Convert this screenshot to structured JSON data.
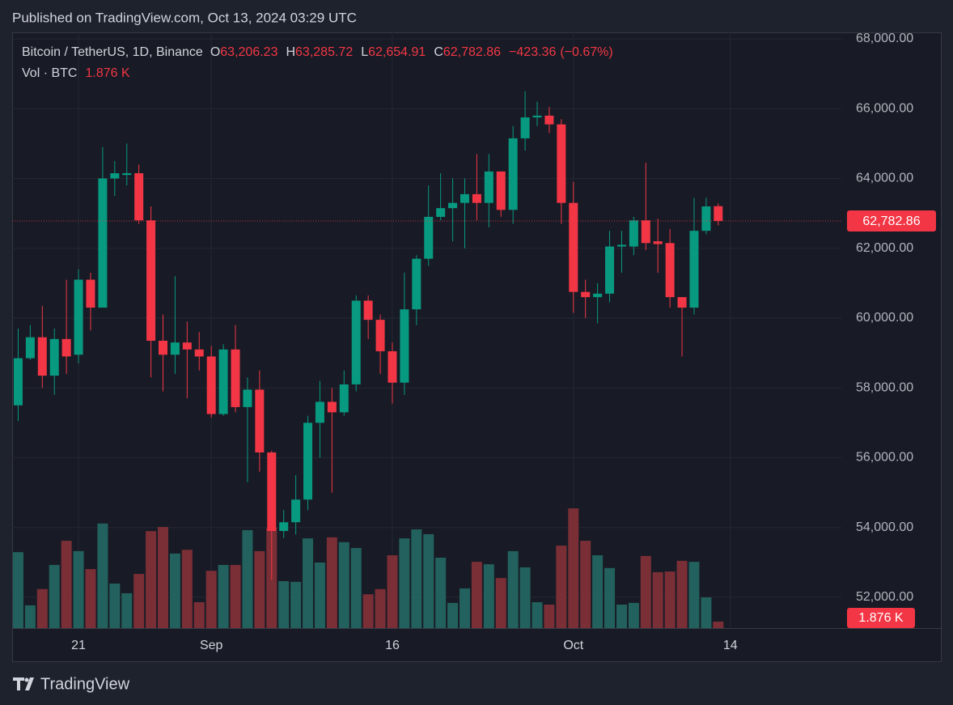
{
  "published": "Published on TradingView.com, Oct 13, 2024 03:29 UTC",
  "brand": "TradingView",
  "chart_data": {
    "type": "candlestick",
    "symbol": "Bitcoin / TetherUS, 1D, Binance",
    "legend": [
      {
        "key": "O",
        "value": 63206.23,
        "label": "63,206.23"
      },
      {
        "key": "H",
        "value": 63285.72,
        "label": "63,285.72"
      },
      {
        "key": "L",
        "value": 62654.91,
        "label": "62,654.91"
      },
      {
        "key": "C",
        "value": 62782.86,
        "label": "62,782.86"
      }
    ],
    "change": {
      "value": -423.36,
      "label": "−423.36"
    },
    "change_pct": {
      "value": -0.67,
      "label": "(−0.67%)"
    },
    "volume_title": "Vol · BTC",
    "volume_last": {
      "value": 1.876,
      "label": "1.876 K"
    },
    "last_price": {
      "value": 62782.86,
      "label": "62,782.86"
    },
    "up_color": "#089981",
    "down_color": "#f23645",
    "volume_up_color": "#22615d",
    "volume_down_color": "#7a2e36",
    "open": [
      57500,
      58850,
      59450,
      58350,
      59400,
      58950,
      61100,
      60300,
      64000,
      64100,
      64150,
      62800,
      59350,
      58950,
      59300,
      59100,
      58900,
      57250,
      59100,
      57450,
      57950,
      56150,
      53900,
      54150,
      54800,
      57000,
      57600,
      57300,
      58100,
      60500,
      59950,
      59050,
      58150,
      60250,
      61700,
      62900,
      63150,
      63300,
      63550,
      63300,
      64200,
      63100,
      65150,
      65750,
      65800,
      65550,
      63300,
      60750,
      60600,
      60700,
      62050,
      62050,
      62800,
      62200,
      62150,
      60600,
      60300,
      62500,
      63206.23
    ],
    "high": [
      59700,
      59800,
      60350,
      59700,
      61100,
      61400,
      61300,
      64900,
      64500,
      65000,
      64400,
      63200,
      60100,
      61200,
      59900,
      59600,
      59200,
      59250,
      59800,
      58300,
      58500,
      56200,
      54500,
      55500,
      57200,
      58200,
      58000,
      58500,
      60650,
      60650,
      60100,
      59300,
      61300,
      61800,
      63800,
      64150,
      64000,
      64000,
      64700,
      64700,
      64200,
      65500,
      66500,
      66200,
      66050,
      65700,
      63900,
      61100,
      61000,
      62500,
      62500,
      62900,
      64450,
      62850,
      62550,
      60600,
      63450,
      63450,
      63285.72
    ],
    "low": [
      57050,
      58800,
      58000,
      57800,
      58400,
      58700,
      59650,
      60300,
      63500,
      63800,
      62700,
      58300,
      57900,
      58400,
      57700,
      58500,
      57150,
      57200,
      57300,
      55300,
      55600,
      52500,
      53700,
      53800,
      54500,
      56000,
      55000,
      57200,
      57900,
      59400,
      58400,
      57550,
      57800,
      59800,
      61500,
      62800,
      62200,
      62000,
      62800,
      62600,
      62900,
      62700,
      64800,
      65500,
      65300,
      62700,
      60150,
      60000,
      59850,
      60450,
      61300,
      61800,
      61950,
      61300,
      60300,
      58900,
      60100,
      62400,
      62654.91
    ],
    "close": [
      58850,
      59450,
      58350,
      59400,
      58900,
      61100,
      60300,
      64000,
      64150,
      64150,
      62800,
      59350,
      58950,
      59300,
      59100,
      58900,
      57250,
      59100,
      57450,
      57950,
      56150,
      53900,
      54150,
      54800,
      57000,
      57600,
      57300,
      58100,
      60500,
      59950,
      59050,
      58150,
      60250,
      61700,
      62900,
      63150,
      63300,
      63550,
      63300,
      64200,
      63100,
      65150,
      65750,
      65800,
      65550,
      63300,
      60750,
      60600,
      60700,
      62050,
      62100,
      62800,
      62150,
      62120,
      60600,
      60300,
      62500,
      63200,
      62782.86
    ],
    "volume": [
      22.0,
      6.6,
      11.3,
      18.3,
      25.3,
      22.3,
      17.1,
      30.3,
      12.9,
      10.1,
      15.7,
      28.1,
      29.3,
      21.6,
      22.7,
      7.5,
      16.6,
      18.3,
      18.3,
      28.4,
      22.3,
      29.1,
      13.6,
      13.4,
      26.0,
      19.0,
      26.3,
      24.9,
      23.2,
      9.8,
      11.3,
      21.1,
      26.0,
      28.6,
      27.2,
      20.4,
      7.3,
      11.5,
      19.2,
      18.5,
      14.5,
      22.3,
      17.6,
      7.5,
      6.8,
      23.9,
      34.7,
      25.3,
      21.1,
      17.4,
      6.8,
      7.3,
      20.9,
      16.2,
      16.4,
      19.5,
      19.2,
      8.9,
      1.876
    ],
    "xlim": [
      -0.5,
      68.2
    ],
    "xticks": [
      {
        "value": 5,
        "label": "21"
      },
      {
        "value": 16,
        "label": "Sep"
      },
      {
        "value": 31,
        "label": "16"
      },
      {
        "value": 46,
        "label": "Oct"
      },
      {
        "value": 59,
        "label": "14"
      }
    ],
    "ylim": [
      51117,
      68186
    ],
    "yticks": [
      {
        "value": 52000,
        "label": "52,000.00"
      },
      {
        "value": 54000,
        "label": "54,000.00"
      },
      {
        "value": 56000,
        "label": "56,000.00"
      },
      {
        "value": 58000,
        "label": "58,000.00"
      },
      {
        "value": 60000,
        "label": "60,000.00"
      },
      {
        "value": 62000,
        "label": "62,000.00"
      },
      {
        "value": 64000,
        "label": "64,000.00"
      },
      {
        "value": 66000,
        "label": "66,000.00"
      },
      {
        "value": 68000,
        "label": "68,000.00"
      }
    ],
    "volume_ylim": [
      0,
      172.6
    ],
    "grid": true
  }
}
